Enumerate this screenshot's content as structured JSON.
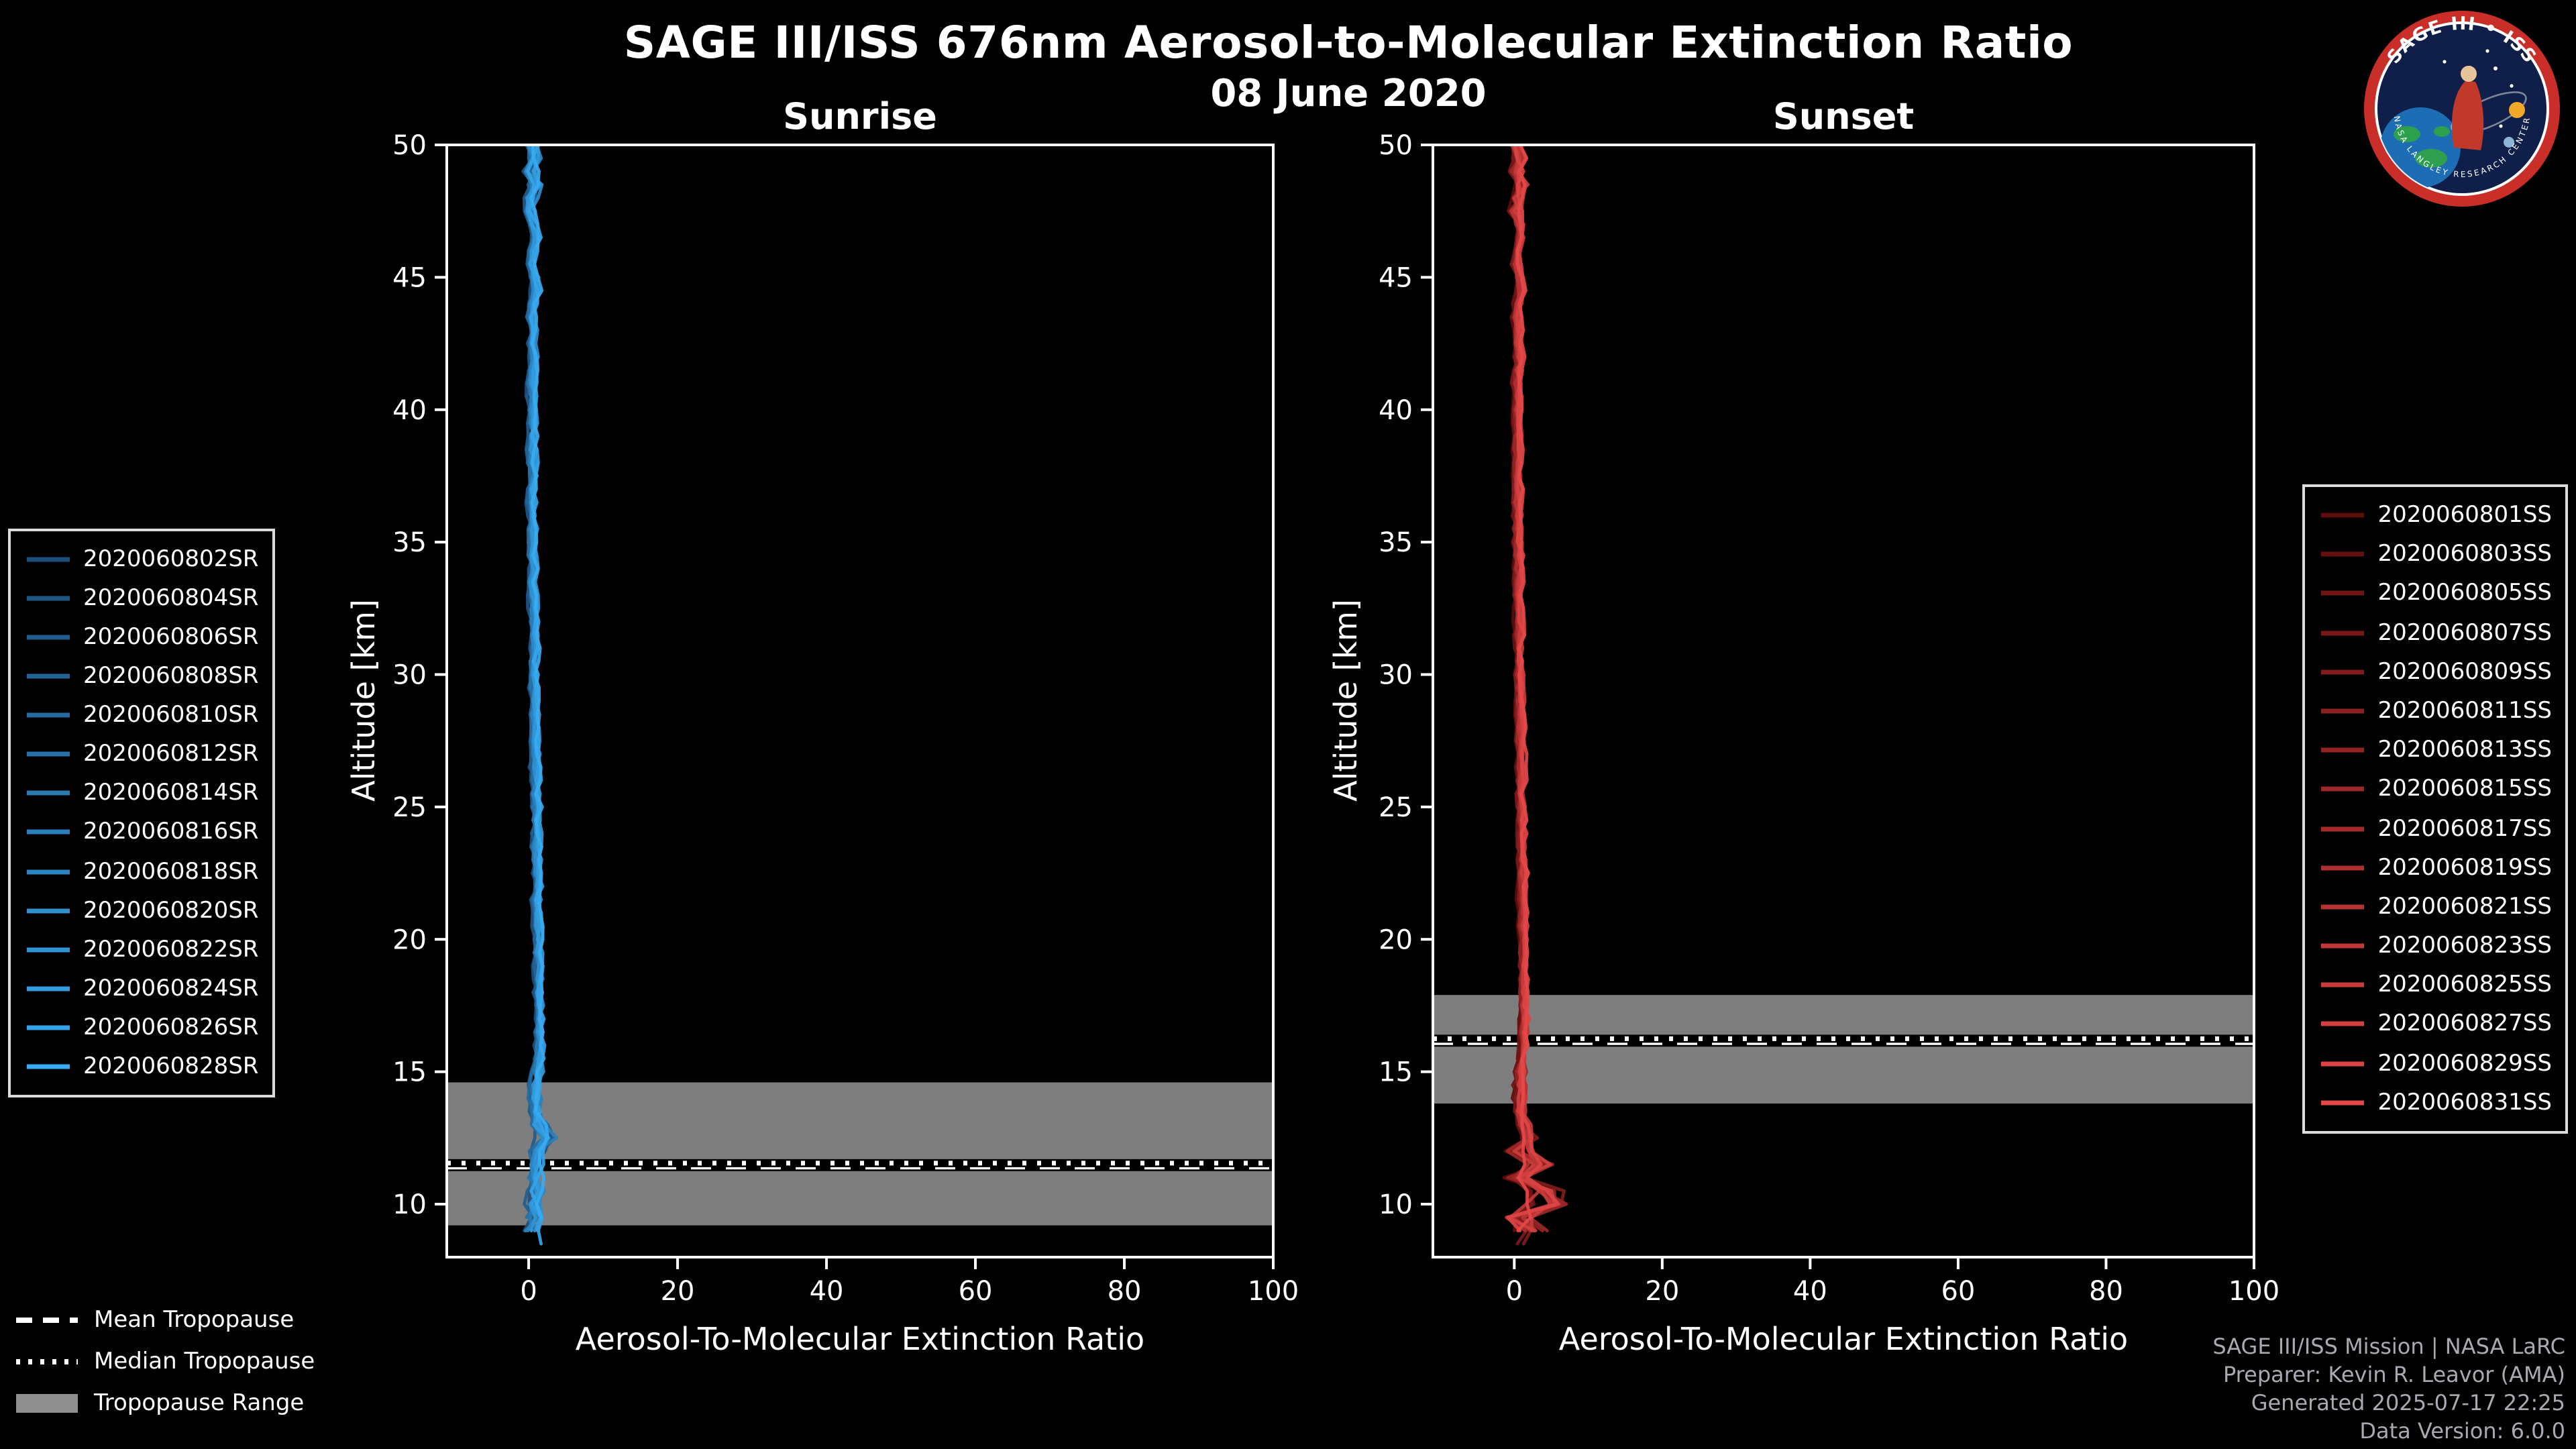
{
  "page": {
    "title": "SAGE III/ISS 676nm Aerosol-to-Molecular Extinction Ratio",
    "date": "08 June 2020",
    "background": "#000000",
    "text_color": "#ffffff"
  },
  "logo": {
    "title": "SAGE III • ISS",
    "ring_text": "NASA LANGLEY RESEARCH CENTER"
  },
  "credits": {
    "line1": "SAGE III/ISS Mission | NASA LaRC",
    "line2": "Preparer: Kevin R. Leavor (AMA)",
    "line3": "Generated 2025-07-17 22:25",
    "line4": "Data Version: 6.0.0"
  },
  "tropopause_legend": [
    {
      "style": "dashed",
      "label": "Mean Tropopause",
      "color": "#ffffff"
    },
    {
      "style": "dotted",
      "label": "Median Tropopause",
      "color": "#ffffff"
    },
    {
      "style": "patch",
      "label": "Tropopause Range",
      "color": "#8f8f8f"
    }
  ],
  "chart_data": [
    {
      "type": "line",
      "panel_title": "Sunrise",
      "xlabel": "Aerosol-To-Molecular Extinction Ratio",
      "ylabel": "Altitude [km]",
      "xlim": [
        -11,
        100
      ],
      "ylim": [
        8,
        50
      ],
      "xticks": [
        0,
        20,
        40,
        60,
        80,
        100
      ],
      "yticks": [
        10,
        15,
        20,
        25,
        30,
        35,
        40,
        45,
        50
      ],
      "grid": false,
      "legend_position": "center-left-outside",
      "tropopause": {
        "mean_km": 11.4,
        "median_km": 11.55,
        "range_km": [
          9.2,
          14.6
        ],
        "band_color": "#8f8f8f",
        "line_color": "#ffffff"
      },
      "series": [
        {
          "name": "2020060802SR",
          "color": "#1d4f7c"
        },
        {
          "name": "2020060804SR",
          "color": "#1f5685"
        },
        {
          "name": "2020060806SR",
          "color": "#215d8e"
        },
        {
          "name": "2020060808SR",
          "color": "#236497"
        },
        {
          "name": "2020060810SR",
          "color": "#256ba0"
        },
        {
          "name": "2020060812SR",
          "color": "#2772a9"
        },
        {
          "name": "2020060814SR",
          "color": "#2979b2"
        },
        {
          "name": "2020060816SR",
          "color": "#2b80bb"
        },
        {
          "name": "2020060818SR",
          "color": "#2d87c4"
        },
        {
          "name": "2020060820SR",
          "color": "#2f8ecd"
        },
        {
          "name": "2020060822SR",
          "color": "#3195d6"
        },
        {
          "name": "2020060824SR",
          "color": "#339cdf"
        },
        {
          "name": "2020060826SR",
          "color": "#35a3e8"
        },
        {
          "name": "2020060828SR",
          "color": "#37aaf1"
        }
      ],
      "profile": {
        "alt_top_km": 50,
        "alt_step_km": -0.5,
        "base_ratio": [
          0.5,
          0.8,
          0.3,
          0.9,
          0.4,
          0.2,
          0.6,
          1.0,
          0.5,
          0.3,
          0.7,
          1.0,
          0.6,
          0.3,
          0.6,
          0.4,
          0.8,
          0.5,
          0.3,
          0.5,
          0.4,
          0.6,
          0.5,
          0.4,
          0.5,
          0.6,
          0.5,
          0.4,
          0.5,
          0.5,
          0.6,
          0.5,
          0.6,
          0.5,
          0.6,
          0.6,
          0.7,
          0.6,
          0.7,
          0.7,
          0.8,
          0.7,
          0.8,
          0.8,
          0.9,
          0.8,
          0.9,
          0.9,
          1.0,
          0.9,
          1.0,
          1.0,
          1.1,
          1.0,
          1.1,
          1.1,
          1.2,
          1.1,
          1.2,
          1.2,
          1.3,
          1.2,
          1.3,
          1.4,
          1.3,
          1.4,
          1.5,
          1.4,
          1.5,
          1.4,
          1.3,
          1.2,
          1.1,
          1.3,
          2.2,
          3.4,
          1.8,
          1.0,
          0.8,
          1.4,
          0.9,
          0.7,
          0.5,
          0.3
        ]
      },
      "noise": {
        "amp_top": 0.8,
        "amp_high": 0.45,
        "amp_mid": 0.7,
        "amp_low": 1.0,
        "end_alt_min_km": 8.4,
        "end_alt_jitter_km": 0.7
      }
    },
    {
      "type": "line",
      "panel_title": "Sunset",
      "xlabel": "Aerosol-To-Molecular Extinction Ratio",
      "ylabel": "Altitude [km]",
      "xlim": [
        -11,
        100
      ],
      "ylim": [
        8,
        50
      ],
      "xticks": [
        0,
        20,
        40,
        60,
        80,
        100
      ],
      "yticks": [
        10,
        15,
        20,
        25,
        30,
        35,
        40,
        45,
        50
      ],
      "grid": false,
      "legend_position": "center-right-outside",
      "tropopause": {
        "mean_km": 16.1,
        "median_km": 16.25,
        "range_km": [
          13.8,
          17.9
        ],
        "band_color": "#8f8f8f",
        "line_color": "#ffffff"
      },
      "series": [
        {
          "name": "2020060801SS",
          "color": "#5e0c0c"
        },
        {
          "name": "2020060803SS",
          "color": "#671010"
        },
        {
          "name": "2020060805SS",
          "color": "#701414"
        },
        {
          "name": "2020060807SS",
          "color": "#791818"
        },
        {
          "name": "2020060809SS",
          "color": "#821c1c"
        },
        {
          "name": "2020060811SS",
          "color": "#8b2020"
        },
        {
          "name": "2020060813SS",
          "color": "#942424"
        },
        {
          "name": "2020060815SS",
          "color": "#9d2828"
        },
        {
          "name": "2020060817SS",
          "color": "#a62c2c"
        },
        {
          "name": "2020060819SS",
          "color": "#af3030"
        },
        {
          "name": "2020060821SS",
          "color": "#b83434"
        },
        {
          "name": "2020060823SS",
          "color": "#c13838"
        },
        {
          "name": "2020060825SS",
          "color": "#ca3c3c"
        },
        {
          "name": "2020060827SS",
          "color": "#d34040"
        },
        {
          "name": "2020060829SS",
          "color": "#dc4444"
        },
        {
          "name": "2020060831SS",
          "color": "#e54848"
        }
      ],
      "profile": {
        "alt_top_km": 50,
        "alt_step_km": -0.5,
        "base_ratio": [
          0.4,
          0.7,
          0.3,
          0.8,
          0.5,
          0.2,
          0.6,
          0.9,
          0.4,
          0.3,
          0.6,
          0.9,
          0.5,
          0.3,
          0.6,
          0.4,
          0.7,
          0.5,
          0.3,
          0.5,
          0.4,
          0.5,
          0.5,
          0.4,
          0.5,
          0.5,
          0.5,
          0.4,
          0.5,
          0.5,
          0.5,
          0.5,
          0.6,
          0.5,
          0.6,
          0.6,
          0.6,
          0.6,
          0.7,
          0.7,
          0.7,
          0.7,
          0.8,
          0.8,
          0.8,
          0.8,
          0.9,
          0.9,
          0.9,
          0.9,
          1.0,
          1.0,
          1.0,
          1.0,
          1.1,
          1.1,
          1.1,
          1.1,
          1.2,
          1.2,
          1.2,
          1.2,
          1.3,
          1.3,
          1.2,
          1.3,
          1.4,
          1.3,
          1.2,
          1.1,
          1.0,
          0.9,
          0.8,
          1.0,
          1.6,
          2.6,
          0.8,
          3.6,
          0.4,
          4.8,
          6.8,
          0.6,
          3.0,
          0.4
        ]
      },
      "noise": {
        "amp_top": 0.8,
        "amp_high": 0.45,
        "amp_mid": 0.7,
        "amp_low": 1.8,
        "end_alt_min_km": 8.4,
        "end_alt_jitter_km": 0.7
      }
    }
  ]
}
